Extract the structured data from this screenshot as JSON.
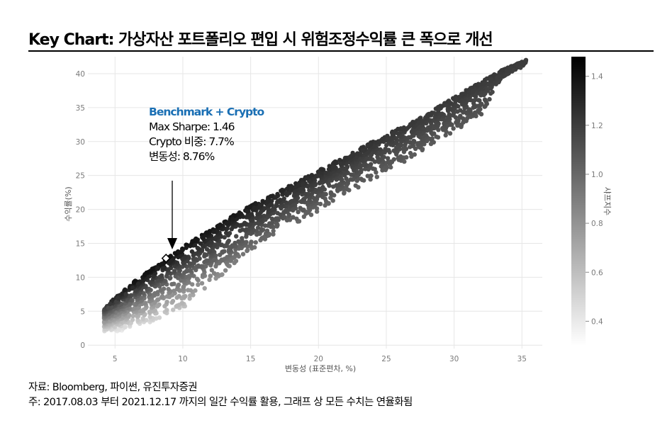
{
  "header": {
    "title": "Key Chart: 가상자산 포트폴리오 편입 시 위험조정수익률 큰 폭으로 개선"
  },
  "annotation": {
    "heading": "Benchmark + Crypto",
    "line1": "Max Sharpe: 1.46",
    "line2": "Crypto 비중: 7.7%",
    "line3": "변동성: 8.76%"
  },
  "footer": {
    "source": "자료: Bloomberg, 파이썬, 유진투자증권",
    "note": "주: 2017.08.03 부터 2021.12.17 까지의 일간 수익률 활용, 그래프 상 모든 수치는 연율화됨"
  },
  "colors": {
    "accent": "#1a6fb4",
    "grid": "#e6e6e6",
    "axis_text": "#7a7a7a"
  },
  "chart_data": {
    "type": "scatter",
    "xlabel": "변동성 (표준편차, %)",
    "ylabel": "수익률(%)",
    "xlim": [
      3,
      36.5
    ],
    "ylim": [
      -0.5,
      42.5
    ],
    "x_ticks": [
      5,
      10,
      15,
      20,
      25,
      30,
      35
    ],
    "y_ticks": [
      0,
      5,
      10,
      15,
      20,
      25,
      30,
      35,
      40
    ],
    "grid": true,
    "colorbar": {
      "label": "샤프지수",
      "ticks": [
        0.4,
        0.6,
        0.8,
        1.0,
        1.2,
        1.4
      ],
      "range": [
        0.3,
        1.48
      ],
      "colors": [
        "#ffffff",
        "#000000"
      ]
    },
    "frontier": [
      [
        4.2,
        5.3
      ],
      [
        4.8,
        6.6
      ],
      [
        5.5,
        7.8
      ],
      [
        6.5,
        9.5
      ],
      [
        7.5,
        11.0
      ],
      [
        8.76,
        12.8
      ],
      [
        10,
        14.5
      ],
      [
        12,
        17.0
      ],
      [
        14,
        19.5
      ],
      [
        16,
        21.6
      ],
      [
        18,
        23.6
      ],
      [
        20,
        25.8
      ],
      [
        22,
        27.8
      ],
      [
        24,
        30.0
      ],
      [
        26,
        32.0
      ],
      [
        28,
        34.0
      ],
      [
        30,
        36.6
      ],
      [
        32,
        38.8
      ],
      [
        33.5,
        40.5
      ],
      [
        35.3,
        42.0
      ]
    ],
    "lower_edge": [
      [
        4.2,
        2.0
      ],
      [
        5,
        2.0
      ],
      [
        6,
        2.2
      ],
      [
        7,
        2.8
      ],
      [
        8,
        3.5
      ],
      [
        9,
        4.2
      ],
      [
        10,
        5.5
      ],
      [
        11,
        7.0
      ],
      [
        12,
        8.4
      ],
      [
        13,
        10.3
      ],
      [
        14,
        12.2
      ],
      [
        15,
        14.0
      ],
      [
        16,
        15.3
      ],
      [
        17,
        16.5
      ],
      [
        18,
        17.6
      ],
      [
        19,
        18.6
      ],
      [
        20,
        19.8
      ],
      [
        22,
        22.1
      ],
      [
        24,
        24.4
      ],
      [
        26,
        26.6
      ],
      [
        28,
        29.0
      ],
      [
        30,
        31.5
      ],
      [
        32,
        34.0
      ],
      [
        33.5,
        39.4
      ],
      [
        35.3,
        41.4
      ]
    ],
    "highlight": {
      "label": "Benchmark + Crypto",
      "x": 8.76,
      "y": 12.8,
      "sharpe": 1.46
    }
  }
}
